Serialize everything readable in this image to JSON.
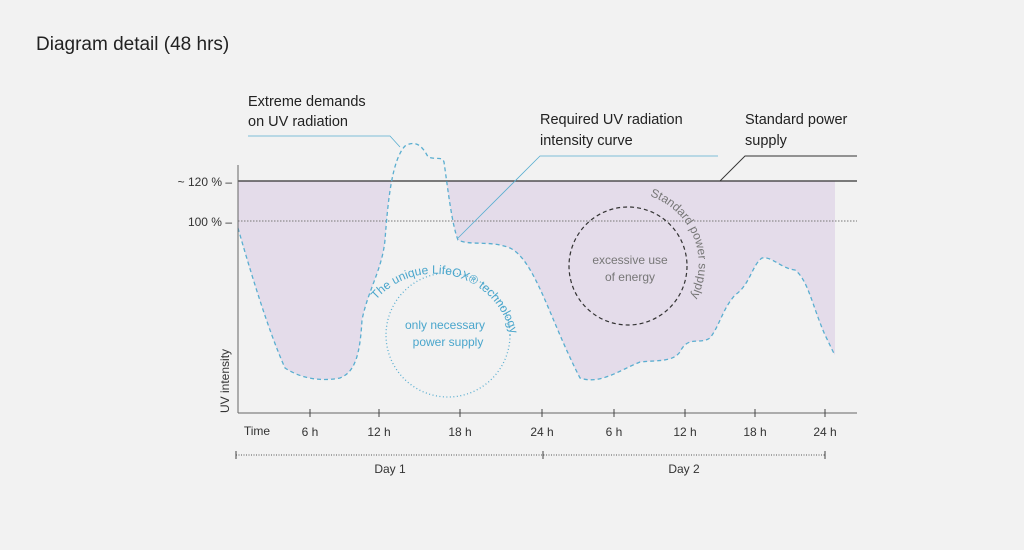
{
  "title": "Diagram detail (48 hrs)",
  "annotations": {
    "extreme": [
      "Extreme demands",
      "on UV radiation"
    ],
    "required": [
      "Required UV radiation",
      "intensity curve"
    ],
    "standard": [
      "Standard power",
      "supply"
    ]
  },
  "y_axis": {
    "label": "UV intensity",
    "ticks": [
      "~ 120 % –",
      "100 % –"
    ]
  },
  "x_axis": {
    "label": "Time",
    "ticks": [
      "6 h",
      "12 h",
      "18 h",
      "24 h",
      "6 h",
      "12 h",
      "18 h",
      "24 h"
    ]
  },
  "days": [
    "Day 1",
    "Day 2"
  ],
  "circle_lifeox": {
    "arc_text": "The unique LifeOX® technology",
    "lines": [
      "only necessary",
      "power supply"
    ]
  },
  "circle_excess": {
    "arc_text": "Standard power supply",
    "lines": [
      "excessive use",
      "of energy"
    ]
  },
  "colors": {
    "curve": "#5aaed0",
    "fill": "#e4dcea",
    "axis": "#555555",
    "text": "#333333",
    "grey_text": "#777777"
  }
}
